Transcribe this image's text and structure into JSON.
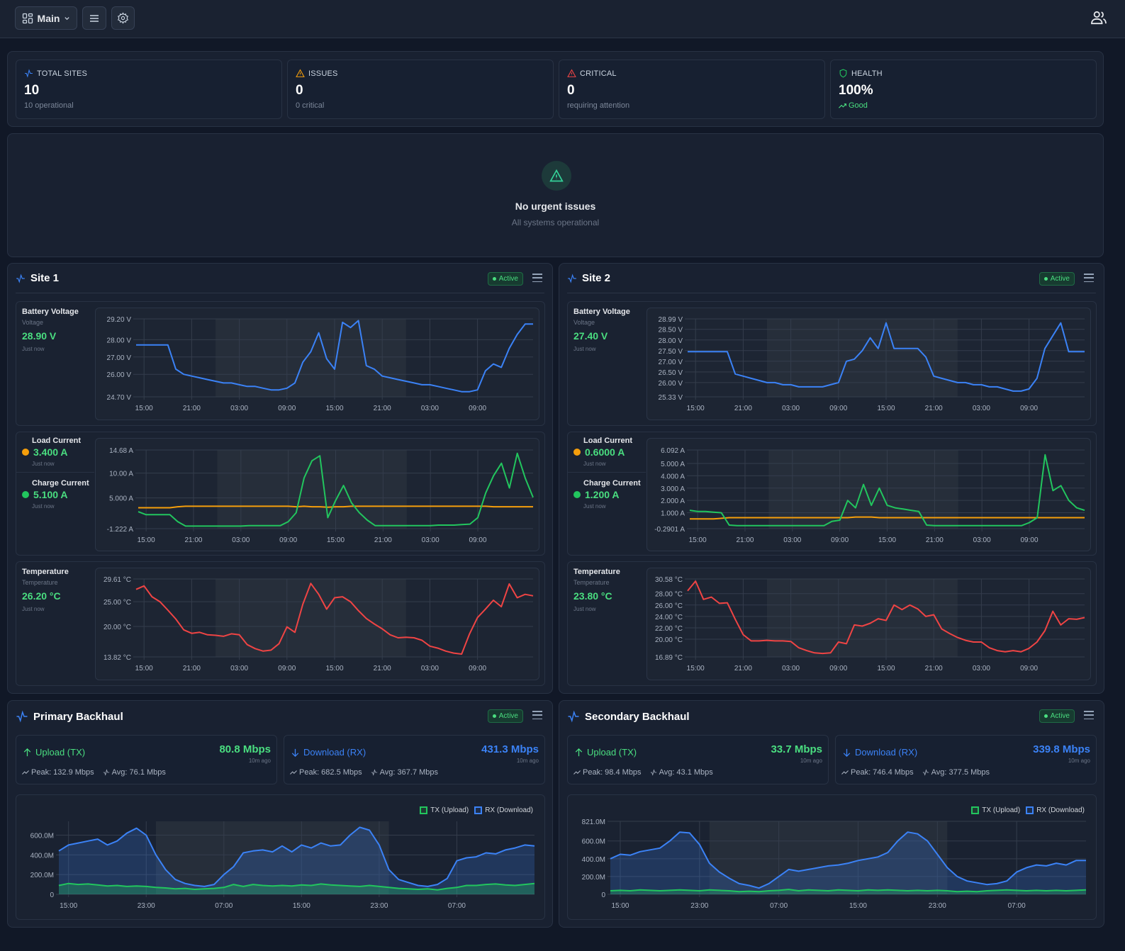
{
  "header": {
    "view_label": "Main",
    "icons": [
      "grid-icon",
      "chevron-down-icon",
      "menu-icon",
      "gear-icon",
      "users-icon"
    ]
  },
  "stats": [
    {
      "label": "TOTAL SITES",
      "value": "10",
      "sub": "10 operational",
      "icon": "activity-icon",
      "color": "#3b82f6"
    },
    {
      "label": "ISSUES",
      "value": "0",
      "sub": "0 critical",
      "icon": "warning-icon",
      "color": "#f59e0b"
    },
    {
      "label": "CRITICAL",
      "value": "0",
      "sub": "requiring attention",
      "icon": "warning-icon",
      "color": "#ef4444"
    },
    {
      "label": "HEALTH",
      "value": "100%",
      "sub": "Good",
      "icon": "shield-icon",
      "color": "#22c55e"
    }
  ],
  "issues": {
    "title": "No urgent issues",
    "subtitle": "All systems operational"
  },
  "sites": [
    {
      "title": "Site 1",
      "status": "Active",
      "voltage": {
        "label": "Battery Voltage",
        "sublabel": "Voltage",
        "value": "28.90 V",
        "updated": "Just now"
      },
      "load": {
        "label": "Load Current",
        "value": "3.400 A",
        "updated": "Just now"
      },
      "charge": {
        "label": "Charge Current",
        "value": "5.100 A",
        "updated": "Just now"
      },
      "temp": {
        "label": "Temperature",
        "sublabel": "Temperature",
        "value": "26.20 °C",
        "updated": "Just now"
      }
    },
    {
      "title": "Site 2",
      "status": "Active",
      "voltage": {
        "label": "Battery Voltage",
        "sublabel": "Voltage",
        "value": "27.40 V",
        "updated": "Just now"
      },
      "load": {
        "label": "Load Current",
        "value": "0.6000 A",
        "updated": "Just now"
      },
      "charge": {
        "label": "Charge Current",
        "value": "1.200 A",
        "updated": "Just now"
      },
      "temp": {
        "label": "Temperature",
        "sublabel": "Temperature",
        "value": "23.80 °C",
        "updated": "Just now"
      }
    }
  ],
  "backhauls": [
    {
      "title": "Primary Backhaul",
      "status": "Active",
      "upload": {
        "label": "Upload (TX)",
        "value": "80.8 Mbps",
        "updated": "10m ago",
        "peak": "Peak: 132.9 Mbps",
        "avg": "Avg: 76.1 Mbps"
      },
      "download": {
        "label": "Download (RX)",
        "value": "431.3 Mbps",
        "updated": "10m ago",
        "peak": "Peak: 682.5 Mbps",
        "avg": "Avg: 367.7 Mbps"
      },
      "legend": [
        "TX (Upload)",
        "RX (Download)"
      ]
    },
    {
      "title": "Secondary Backhaul",
      "status": "Active",
      "upload": {
        "label": "Upload (TX)",
        "value": "33.7 Mbps",
        "updated": "10m ago",
        "peak": "Peak: 98.4 Mbps",
        "avg": "Avg: 43.1 Mbps"
      },
      "download": {
        "label": "Download (RX)",
        "value": "339.8 Mbps",
        "updated": "10m ago",
        "peak": "Peak: 746.4 Mbps",
        "avg": "Avg: 377.5 Mbps"
      },
      "legend": [
        "TX (Upload)",
        "RX (Download)"
      ]
    }
  ],
  "colors": {
    "voltage": "#3b82f6",
    "load": "#f59e0b",
    "charge": "#22c55e",
    "temp": "#ef4444",
    "tx": "#22c55e",
    "rx": "#3b82f6",
    "good": "#4ade80"
  },
  "chart_data": [
    {
      "id": "s1-voltage",
      "type": "line",
      "ylim": [
        24.7,
        29.2
      ],
      "yticks": [
        [
          29.2,
          "29.20 V"
        ],
        [
          28,
          "28.00 V"
        ],
        [
          27,
          "27.00 V"
        ],
        [
          26,
          "26.00 V"
        ],
        [
          24.7,
          "24.70 V"
        ]
      ],
      "xticks": [
        "15:00",
        "21:00",
        "03:00",
        "09:00",
        "15:00",
        "21:00",
        "03:00",
        "09:00"
      ],
      "series": [
        {
          "key": "voltage",
          "values": [
            27.7,
            27.7,
            27.7,
            27.7,
            27.7,
            26.3,
            26.0,
            25.9,
            25.8,
            25.7,
            25.6,
            25.5,
            25.5,
            25.4,
            25.3,
            25.3,
            25.2,
            25.1,
            25.1,
            25.2,
            25.5,
            26.7,
            27.3,
            28.4,
            26.9,
            26.3,
            29.0,
            28.7,
            29.1,
            26.5,
            26.3,
            25.9,
            25.8,
            25.7,
            25.6,
            25.5,
            25.4,
            25.4,
            25.3,
            25.2,
            25.1,
            25.0,
            25.0,
            25.1,
            26.2,
            26.6,
            26.4,
            27.5,
            28.3,
            28.9,
            28.9
          ]
        }
      ]
    },
    {
      "id": "s1-current",
      "type": "line",
      "ylim": [
        -1.222,
        14.68
      ],
      "yticks": [
        [
          14.68,
          "14.68 A"
        ],
        [
          10,
          "10.00 A"
        ],
        [
          5,
          "5.000 A"
        ],
        [
          -1.222,
          "-1.222 A"
        ]
      ],
      "xticks": [
        "15:00",
        "21:00",
        "03:00",
        "09:00",
        "15:00",
        "21:00",
        "03:00",
        "09:00"
      ],
      "series": [
        {
          "key": "load",
          "values": [
            3.0,
            3.0,
            3.0,
            3.0,
            3.0,
            3.2,
            3.3,
            3.3,
            3.3,
            3.3,
            3.3,
            3.3,
            3.3,
            3.3,
            3.3,
            3.3,
            3.3,
            3.3,
            3.3,
            3.3,
            3.2,
            3.3,
            3.2,
            3.2,
            3.1,
            3.2,
            3.2,
            3.3,
            3.3,
            3.3,
            3.3,
            3.3,
            3.3,
            3.3,
            3.3,
            3.3,
            3.3,
            3.3,
            3.3,
            3.3,
            3.3,
            3.3,
            3.3,
            3.3,
            3.3,
            3.2,
            3.2,
            3.2,
            3.2,
            3.2,
            3.2
          ]
        },
        {
          "key": "charge",
          "values": [
            2.2,
            1.6,
            1.6,
            1.6,
            1.6,
            0.2,
            -0.7,
            -0.7,
            -0.7,
            -0.7,
            -0.7,
            -0.7,
            -0.7,
            -0.7,
            -0.6,
            -0.6,
            -0.6,
            -0.6,
            -0.6,
            0.2,
            2.0,
            9.0,
            12.5,
            13.5,
            1.0,
            4.5,
            7.5,
            4.0,
            2.0,
            0.5,
            -0.6,
            -0.6,
            -0.6,
            -0.6,
            -0.6,
            -0.6,
            -0.6,
            -0.6,
            -0.5,
            -0.5,
            -0.5,
            -0.4,
            -0.3,
            1.0,
            6.0,
            9.5,
            12.0,
            7.0,
            14.0,
            9.0,
            5.1
          ]
        }
      ]
    },
    {
      "id": "s1-temp",
      "type": "line",
      "ylim": [
        13.82,
        29.61
      ],
      "yticks": [
        [
          29.61,
          "29.61 °C"
        ],
        [
          25,
          "25.00 °C"
        ],
        [
          20,
          "20.00 °C"
        ],
        [
          13.82,
          "13.82 °C"
        ]
      ],
      "xticks": [
        "15:00",
        "21:00",
        "03:00",
        "09:00",
        "15:00",
        "21:00",
        "03:00",
        "09:00"
      ],
      "series": [
        {
          "key": "temp",
          "values": [
            27.5,
            28.2,
            26.0,
            25.0,
            23.3,
            21.5,
            19.3,
            18.6,
            18.8,
            18.3,
            18.2,
            18.0,
            18.5,
            18.3,
            16.3,
            15.5,
            15.0,
            15.2,
            16.5,
            19.9,
            18.8,
            24.5,
            28.7,
            26.5,
            23.5,
            25.8,
            26.0,
            25.0,
            23.2,
            21.6,
            20.5,
            19.5,
            18.3,
            17.7,
            17.8,
            17.7,
            17.2,
            16.0,
            15.6,
            15.0,
            14.6,
            14.4,
            18.5,
            21.8,
            23.5,
            25.3,
            24.0,
            28.6,
            25.8,
            26.5,
            26.2
          ]
        }
      ]
    },
    {
      "id": "s2-voltage",
      "type": "line",
      "ylim": [
        25.33,
        28.99
      ],
      "yticks": [
        [
          28.99,
          "28.99 V"
        ],
        [
          28.5,
          "28.50 V"
        ],
        [
          28,
          "28.00 V"
        ],
        [
          27.5,
          "27.50 V"
        ],
        [
          27,
          "27.00 V"
        ],
        [
          26.5,
          "26.50 V"
        ],
        [
          26,
          "26.00 V"
        ],
        [
          25.33,
          "25.33 V"
        ]
      ],
      "xticks": [
        "15:00",
        "21:00",
        "03:00",
        "09:00",
        "15:00",
        "21:00",
        "03:00",
        "09:00"
      ],
      "series": [
        {
          "key": "voltage",
          "values": [
            27.45,
            27.45,
            27.45,
            27.45,
            27.45,
            27.45,
            26.4,
            26.3,
            26.2,
            26.1,
            26.0,
            26.0,
            25.9,
            25.9,
            25.8,
            25.8,
            25.8,
            25.8,
            25.9,
            26.0,
            27.0,
            27.1,
            27.5,
            28.1,
            27.6,
            28.8,
            27.6,
            27.6,
            27.6,
            27.6,
            27.2,
            26.3,
            26.2,
            26.1,
            26.0,
            26.0,
            25.9,
            25.9,
            25.8,
            25.8,
            25.7,
            25.6,
            25.6,
            25.7,
            26.2,
            27.6,
            28.2,
            28.8,
            27.45,
            27.45,
            27.45
          ]
        }
      ]
    },
    {
      "id": "s2-current",
      "type": "line",
      "ylim": [
        -0.2901,
        6.092
      ],
      "yticks": [
        [
          6.092,
          "6.092 A"
        ],
        [
          5,
          "5.000 A"
        ],
        [
          4,
          "4.000 A"
        ],
        [
          3,
          "3.000 A"
        ],
        [
          2,
          "2.000 A"
        ],
        [
          1,
          "1.000 A"
        ],
        [
          -0.2901,
          "-0.2901 A"
        ]
      ],
      "xticks": [
        "15:00",
        "21:00",
        "03:00",
        "09:00",
        "15:00",
        "21:00",
        "03:00",
        "09:00"
      ],
      "series": [
        {
          "key": "load",
          "values": [
            0.5,
            0.5,
            0.5,
            0.5,
            0.55,
            0.6,
            0.6,
            0.6,
            0.6,
            0.6,
            0.6,
            0.6,
            0.6,
            0.6,
            0.6,
            0.6,
            0.6,
            0.6,
            0.6,
            0.6,
            0.6,
            0.65,
            0.65,
            0.65,
            0.6,
            0.6,
            0.6,
            0.6,
            0.6,
            0.6,
            0.6,
            0.6,
            0.6,
            0.6,
            0.6,
            0.6,
            0.6,
            0.6,
            0.6,
            0.6,
            0.6,
            0.6,
            0.6,
            0.6,
            0.6,
            0.6,
            0.6,
            0.6,
            0.6,
            0.6,
            0.6
          ]
        },
        {
          "key": "charge",
          "values": [
            1.2,
            1.1,
            1.1,
            1.05,
            1.0,
            0.0,
            -0.05,
            -0.05,
            -0.05,
            -0.05,
            -0.05,
            -0.05,
            -0.05,
            -0.05,
            -0.05,
            -0.05,
            -0.05,
            -0.05,
            0.3,
            0.4,
            2.0,
            1.4,
            3.3,
            1.6,
            3.0,
            1.6,
            1.4,
            1.3,
            1.2,
            1.1,
            0.0,
            -0.05,
            -0.05,
            -0.05,
            -0.05,
            -0.05,
            -0.05,
            -0.05,
            -0.05,
            -0.05,
            -0.05,
            -0.05,
            -0.05,
            0.2,
            0.6,
            5.7,
            2.8,
            3.2,
            2.0,
            1.4,
            1.2
          ]
        }
      ]
    },
    {
      "id": "s2-temp",
      "type": "line",
      "ylim": [
        16.89,
        30.58
      ],
      "yticks": [
        [
          30.58,
          "30.58 °C"
        ],
        [
          28,
          "28.00 °C"
        ],
        [
          26,
          "26.00 °C"
        ],
        [
          24,
          "24.00 °C"
        ],
        [
          22,
          "22.00 °C"
        ],
        [
          20,
          "20.00 °C"
        ],
        [
          16.89,
          "16.89 °C"
        ]
      ],
      "xticks": [
        "15:00",
        "21:00",
        "03:00",
        "09:00",
        "15:00",
        "21:00",
        "03:00",
        "09:00"
      ],
      "series": [
        {
          "key": "temp",
          "values": [
            28.5,
            30.2,
            27.0,
            27.4,
            26.3,
            26.4,
            23.5,
            20.8,
            19.7,
            19.7,
            19.8,
            19.7,
            19.7,
            19.6,
            18.5,
            18.0,
            17.6,
            17.5,
            17.6,
            19.5,
            19.2,
            22.5,
            22.3,
            22.8,
            23.6,
            23.3,
            26.0,
            25.2,
            26.0,
            25.3,
            24.0,
            24.3,
            21.8,
            21.0,
            20.3,
            19.8,
            19.5,
            19.5,
            18.5,
            18.0,
            17.8,
            18.0,
            17.8,
            18.4,
            19.5,
            21.5,
            24.9,
            22.5,
            23.6,
            23.5,
            23.8
          ]
        }
      ]
    },
    {
      "id": "b1-traffic",
      "type": "area",
      "ylim": [
        0,
        740
      ],
      "yticks": [
        [
          600,
          "600.0M"
        ],
        [
          400,
          "400.0M"
        ],
        [
          200,
          "200.0M"
        ],
        [
          0,
          "0"
        ]
      ],
      "xticks": [
        "15:00",
        "23:00",
        "07:00",
        "15:00",
        "23:00",
        "07:00"
      ],
      "series": [
        {
          "key": "rx",
          "name": "RX (Download)",
          "values": [
            440,
            500,
            520,
            540,
            560,
            500,
            540,
            620,
            670,
            600,
            400,
            250,
            150,
            110,
            90,
            80,
            100,
            200,
            280,
            420,
            440,
            450,
            430,
            490,
            430,
            500,
            470,
            520,
            490,
            500,
            600,
            680,
            650,
            500,
            250,
            150,
            120,
            90,
            80,
            100,
            160,
            340,
            370,
            380,
            420,
            410,
            450,
            470,
            500,
            490
          ]
        },
        {
          "key": "tx",
          "name": "TX (Upload)",
          "values": [
            90,
            110,
            100,
            105,
            95,
            85,
            90,
            80,
            85,
            80,
            70,
            65,
            55,
            60,
            50,
            55,
            60,
            70,
            100,
            80,
            100,
            90,
            85,
            90,
            85,
            95,
            90,
            105,
            95,
            90,
            85,
            80,
            90,
            80,
            70,
            60,
            55,
            50,
            55,
            45,
            60,
            70,
            90,
            90,
            100,
            105,
            95,
            90,
            100,
            110
          ]
        }
      ]
    },
    {
      "id": "b2-traffic",
      "type": "area",
      "ylim": [
        0,
        821
      ],
      "yticks": [
        [
          821,
          "821.0M"
        ],
        [
          600,
          "600.0M"
        ],
        [
          400,
          "400.0M"
        ],
        [
          200,
          "200.0M"
        ],
        [
          0,
          "0"
        ]
      ],
      "xticks": [
        "15:00",
        "23:00",
        "07:00",
        "15:00",
        "23:00",
        "07:00"
      ],
      "series": [
        {
          "key": "rx",
          "name": "RX (Download)",
          "values": [
            400,
            450,
            440,
            480,
            500,
            520,
            600,
            700,
            690,
            560,
            350,
            250,
            180,
            120,
            100,
            70,
            120,
            200,
            280,
            260,
            280,
            300,
            320,
            330,
            350,
            380,
            400,
            420,
            470,
            600,
            700,
            680,
            600,
            450,
            300,
            200,
            150,
            130,
            110,
            120,
            150,
            250,
            300,
            330,
            320,
            350,
            330,
            380,
            380
          ]
        },
        {
          "key": "tx",
          "name": "TX (Upload)",
          "values": [
            40,
            45,
            40,
            50,
            45,
            40,
            45,
            50,
            45,
            40,
            50,
            45,
            40,
            30,
            35,
            30,
            40,
            45,
            55,
            40,
            50,
            45,
            40,
            50,
            45,
            40,
            50,
            45,
            50,
            45,
            40,
            45,
            40,
            45,
            40,
            30,
            35,
            30,
            40,
            45,
            50,
            45,
            40,
            45,
            40,
            45,
            40,
            45,
            50
          ]
        }
      ]
    }
  ]
}
